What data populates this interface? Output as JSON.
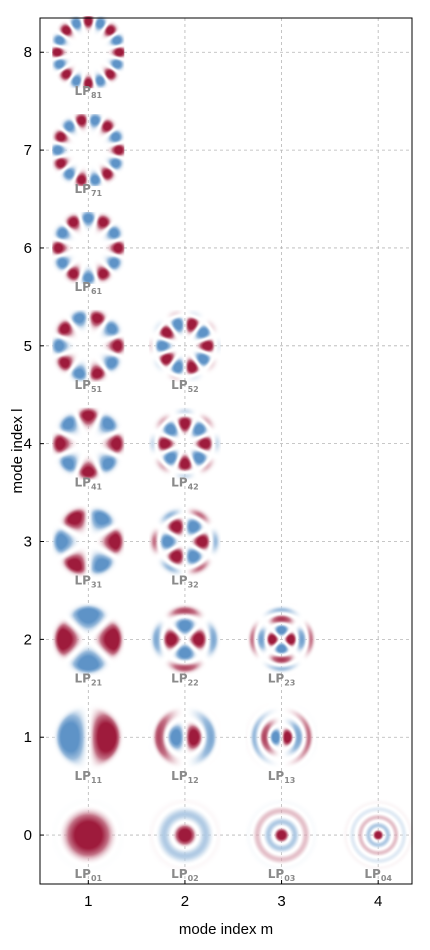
{
  "chart_data": {
    "type": "scatter",
    "xlabel": "mode index m",
    "ylabel": "mode index l",
    "xlim": [
      0.5,
      4.35
    ],
    "ylim": [
      -0.5,
      8.35
    ],
    "xticks": [
      1,
      2,
      3,
      4
    ],
    "yticks": [
      0,
      1,
      2,
      3,
      4,
      5,
      6,
      7,
      8
    ],
    "grid": true,
    "colors": {
      "positive": "#9e1b3c",
      "negative": "#5e93c7",
      "grid": "#b5b5b5",
      "label": "#8a8a8a"
    },
    "points": [
      {
        "l": 0,
        "m": 1,
        "label": "LP",
        "sub": "01"
      },
      {
        "l": 0,
        "m": 2,
        "label": "LP",
        "sub": "02"
      },
      {
        "l": 0,
        "m": 3,
        "label": "LP",
        "sub": "03"
      },
      {
        "l": 0,
        "m": 4,
        "label": "LP",
        "sub": "04"
      },
      {
        "l": 1,
        "m": 1,
        "label": "LP",
        "sub": "11"
      },
      {
        "l": 1,
        "m": 2,
        "label": "LP",
        "sub": "12"
      },
      {
        "l": 1,
        "m": 3,
        "label": "LP",
        "sub": "13"
      },
      {
        "l": 2,
        "m": 1,
        "label": "LP",
        "sub": "21"
      },
      {
        "l": 2,
        "m": 2,
        "label": "LP",
        "sub": "22"
      },
      {
        "l": 2,
        "m": 3,
        "label": "LP",
        "sub": "23"
      },
      {
        "l": 3,
        "m": 1,
        "label": "LP",
        "sub": "31"
      },
      {
        "l": 3,
        "m": 2,
        "label": "LP",
        "sub": "32"
      },
      {
        "l": 4,
        "m": 1,
        "label": "LP",
        "sub": "41"
      },
      {
        "l": 4,
        "m": 2,
        "label": "LP",
        "sub": "42"
      },
      {
        "l": 5,
        "m": 1,
        "label": "LP",
        "sub": "51"
      },
      {
        "l": 5,
        "m": 2,
        "label": "LP",
        "sub": "52"
      },
      {
        "l": 6,
        "m": 1,
        "label": "LP",
        "sub": "61"
      },
      {
        "l": 7,
        "m": 1,
        "label": "LP",
        "sub": "71"
      },
      {
        "l": 8,
        "m": 1,
        "label": "LP",
        "sub": "81"
      }
    ]
  }
}
